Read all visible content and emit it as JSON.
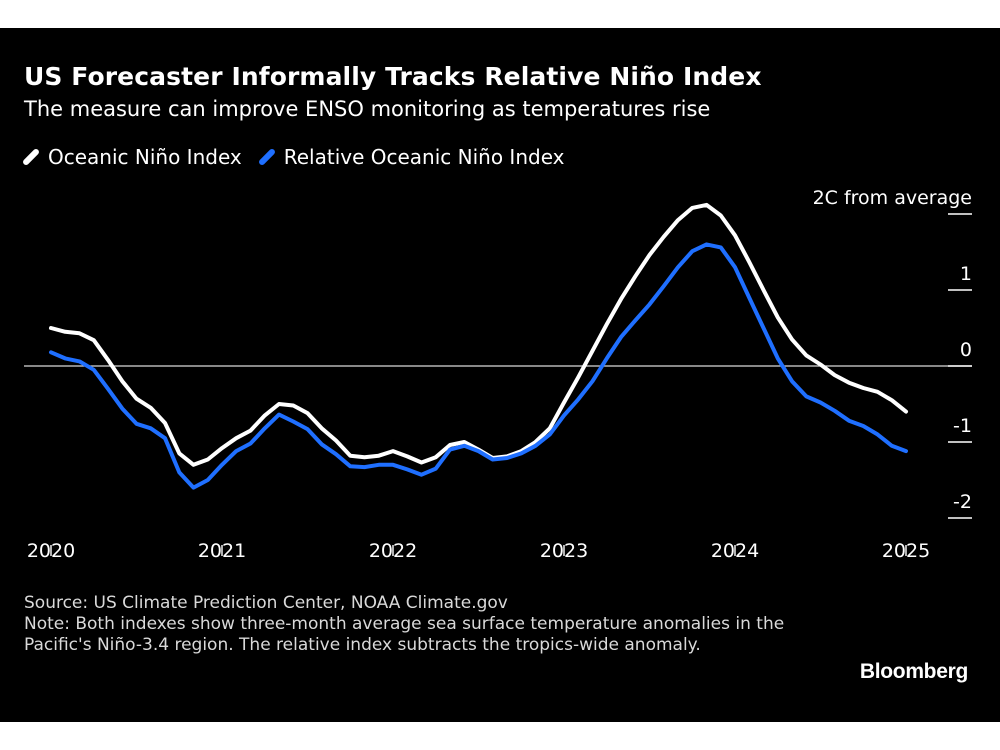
{
  "header": {
    "title": "US Forecaster Informally Tracks Relative Niño Index",
    "subtitle": "The measure can improve ENSO monitoring as temperatures rise"
  },
  "legend": [
    {
      "label": "Oceanic Niño Index",
      "color": "#ffffff"
    },
    {
      "label": "Relative Oceanic Niño Index",
      "color": "#1f6fff"
    }
  ],
  "footer": {
    "source": "Source: US Climate Prediction Center, NOAA Climate.gov",
    "note": "Note: Both indexes show three-month average sea surface temperature anomalies in the Pacific's Niño-3.4 region. The relative index subtracts the tropics-wide anomaly."
  },
  "brand": "Bloomberg",
  "chart_data": {
    "type": "line",
    "title": "US Forecaster Informally Tracks Relative Niño Index",
    "subtitle": "The measure can improve ENSO monitoring as temperatures rise",
    "xlabel": "",
    "ylabel": "",
    "xlim": [
      2020.0,
      2025.0
    ],
    "ylim": [
      -2.0,
      2.0
    ],
    "x_ticks": [
      2020,
      2021,
      2022,
      2023,
      2024,
      2025
    ],
    "x_tick_labels": [
      "2020",
      "2021",
      "2022",
      "2023",
      "2024",
      "2025"
    ],
    "y_ticks": [
      2,
      1,
      0,
      -1,
      -2
    ],
    "y_tick_labels": [
      "2C from average",
      "1",
      "0",
      "-1",
      "-2"
    ],
    "zero_line": true,
    "grid": false,
    "legend_position": "top-left",
    "axis_position": "right",
    "series": [
      {
        "name": "Oceanic Niño Index",
        "color": "#ffffff",
        "x": [
          2020.0,
          2020.0833,
          2020.1667,
          2020.25,
          2020.3333,
          2020.4167,
          2020.5,
          2020.5833,
          2020.6667,
          2020.75,
          2020.8333,
          2020.9167,
          2021.0,
          2021.0833,
          2021.1667,
          2021.25,
          2021.3333,
          2021.4167,
          2021.5,
          2021.5833,
          2021.6667,
          2021.75,
          2021.8333,
          2021.9167,
          2022.0,
          2022.0833,
          2022.1667,
          2022.25,
          2022.3333,
          2022.4167,
          2022.5,
          2022.5833,
          2022.6667,
          2022.75,
          2022.8333,
          2022.9167,
          2023.0,
          2023.0833,
          2023.1667,
          2023.25,
          2023.3333,
          2023.4167,
          2023.5,
          2023.5833,
          2023.6667,
          2023.75,
          2023.8333,
          2023.9167,
          2024.0,
          2024.0833,
          2024.1667,
          2024.25,
          2024.3333,
          2024.4167,
          2024.5,
          2024.5833,
          2024.6667,
          2024.75,
          2024.8333,
          2024.9167,
          2025.0
        ],
        "values": [
          0.5,
          0.45,
          0.43,
          0.34,
          0.08,
          -0.2,
          -0.43,
          -0.55,
          -0.75,
          -1.15,
          -1.3,
          -1.23,
          -1.08,
          -0.95,
          -0.85,
          -0.65,
          -0.5,
          -0.52,
          -0.62,
          -0.82,
          -0.98,
          -1.18,
          -1.2,
          -1.18,
          -1.12,
          -1.19,
          -1.27,
          -1.2,
          -1.04,
          -1.0,
          -1.1,
          -1.21,
          -1.19,
          -1.12,
          -1.0,
          -0.82,
          -0.48,
          -0.15,
          0.2,
          0.55,
          0.88,
          1.18,
          1.46,
          1.7,
          1.92,
          2.08,
          2.12,
          1.98,
          1.72,
          1.37,
          1.0,
          0.64,
          0.35,
          0.14,
          0.02,
          -0.12,
          -0.22,
          -0.29,
          -0.34,
          -0.45,
          -0.6
        ]
      },
      {
        "name": "Relative Oceanic Niño Index",
        "color": "#1f6fff",
        "x": [
          2020.0,
          2020.0833,
          2020.1667,
          2020.25,
          2020.3333,
          2020.4167,
          2020.5,
          2020.5833,
          2020.6667,
          2020.75,
          2020.8333,
          2020.9167,
          2021.0,
          2021.0833,
          2021.1667,
          2021.25,
          2021.3333,
          2021.4167,
          2021.5,
          2021.5833,
          2021.6667,
          2021.75,
          2021.8333,
          2021.9167,
          2022.0,
          2022.0833,
          2022.1667,
          2022.25,
          2022.3333,
          2022.4167,
          2022.5,
          2022.5833,
          2022.6667,
          2022.75,
          2022.8333,
          2022.9167,
          2023.0,
          2023.0833,
          2023.1667,
          2023.25,
          2023.3333,
          2023.4167,
          2023.5,
          2023.5833,
          2023.6667,
          2023.75,
          2023.8333,
          2023.9167,
          2024.0,
          2024.0833,
          2024.1667,
          2024.25,
          2024.3333,
          2024.4167,
          2024.5,
          2024.5833,
          2024.6667,
          2024.75,
          2024.8333,
          2024.9167,
          2025.0
        ],
        "values": [
          0.18,
          0.1,
          0.06,
          -0.05,
          -0.3,
          -0.56,
          -0.76,
          -0.82,
          -0.95,
          -1.4,
          -1.6,
          -1.5,
          -1.3,
          -1.12,
          -1.02,
          -0.82,
          -0.64,
          -0.73,
          -0.83,
          -1.03,
          -1.16,
          -1.32,
          -1.33,
          -1.3,
          -1.3,
          -1.36,
          -1.43,
          -1.35,
          -1.1,
          -1.05,
          -1.12,
          -1.23,
          -1.21,
          -1.15,
          -1.05,
          -0.9,
          -0.65,
          -0.44,
          -0.2,
          0.1,
          0.38,
          0.6,
          0.81,
          1.05,
          1.3,
          1.51,
          1.6,
          1.56,
          1.3,
          0.9,
          0.5,
          0.1,
          -0.2,
          -0.4,
          -0.48,
          -0.59,
          -0.72,
          -0.79,
          -0.9,
          -1.05,
          -1.12
        ]
      }
    ]
  }
}
